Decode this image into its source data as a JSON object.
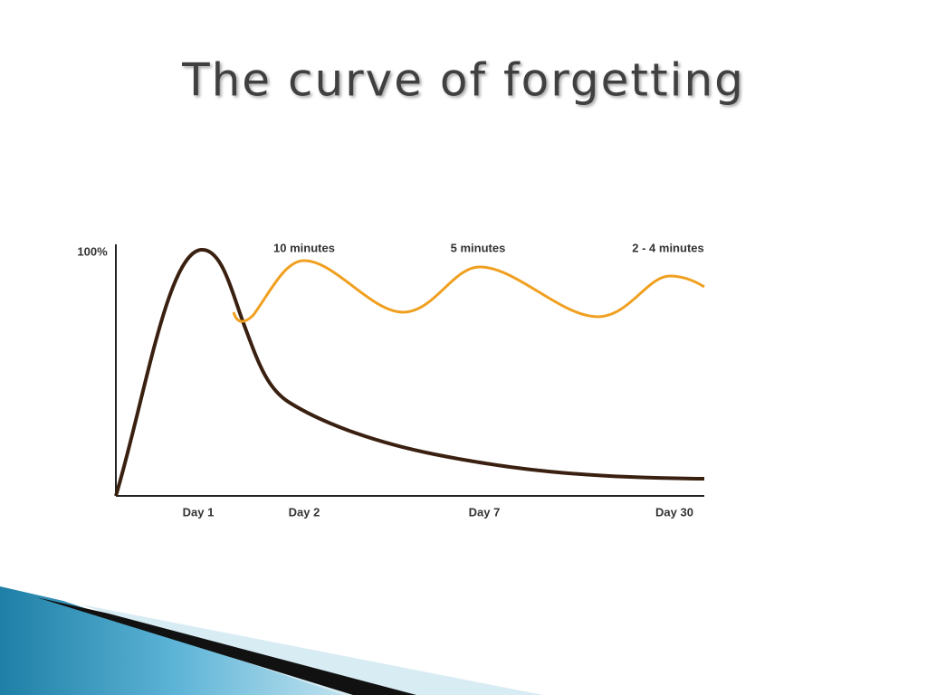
{
  "title": "The curve of forgetting",
  "diagram": {
    "y_label": "100%",
    "annotations": [
      "10 minutes",
      "5 minutes",
      "2 - 4 minutes"
    ],
    "x_labels": [
      "Day 1",
      "Day 2",
      "Day 7",
      "Day 30"
    ]
  }
}
